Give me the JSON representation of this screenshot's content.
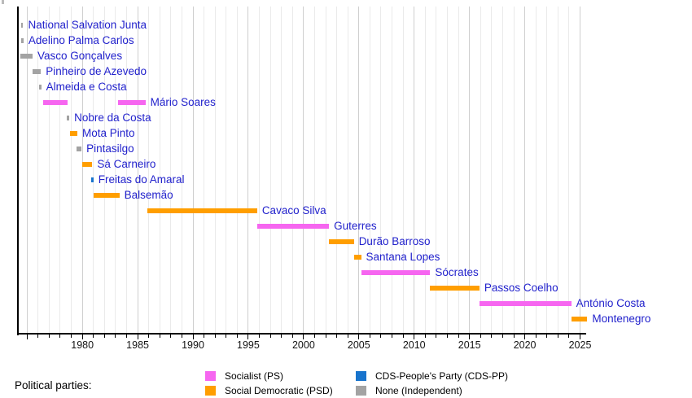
{
  "chart_data": {
    "type": "timeline",
    "x_axis": {
      "start_year": 1974.1,
      "end_year": 2025.75,
      "gridline_first_year": 1975,
      "gridline_last_year": 2025,
      "minor_tick_step": 1,
      "major_tick_step": 5,
      "labeled_ticks": [
        1980,
        1985,
        1990,
        1995,
        2000,
        2005,
        2010,
        2015,
        2020,
        2025
      ]
    },
    "parties": {
      "ps": {
        "label": "Socialist (PS)",
        "color": "#f666f0"
      },
      "psd": {
        "label": "Social Democratic (PSD)",
        "color": "#ff9e00"
      },
      "cds": {
        "label": "CDS-People's Party (CDS-PP)",
        "color": "#1874cd"
      },
      "none": {
        "label": "None (Independent)",
        "color": "#a3a3a3"
      }
    },
    "prime_ministers": [
      {
        "name": "National Salvation Junta",
        "party": "none",
        "terms": [
          [
            1974.45,
            1974.65
          ]
        ]
      },
      {
        "name": "Adelino Palma Carlos",
        "party": "none",
        "terms": [
          [
            1974.45,
            1974.68
          ]
        ]
      },
      {
        "name": "Vasco Gonçalves",
        "party": "none",
        "terms": [
          [
            1974.4,
            1975.5
          ]
        ]
      },
      {
        "name": "Pinheiro de Azevedo",
        "party": "none",
        "terms": [
          [
            1975.5,
            1976.25
          ]
        ]
      },
      {
        "name": "Almeida e Costa",
        "party": "none",
        "terms": [
          [
            1976.1,
            1976.28
          ]
        ]
      },
      {
        "name": "Mário Soares",
        "party": "ps",
        "terms": [
          [
            1976.45,
            1978.66
          ],
          [
            1983.22,
            1985.7
          ]
        ]
      },
      {
        "name": "Nobre da Costa",
        "party": "none",
        "terms": [
          [
            1978.6,
            1978.82
          ]
        ]
      },
      {
        "name": "Mota Pinto",
        "party": "psd",
        "terms": [
          [
            1978.86,
            1979.55
          ]
        ]
      },
      {
        "name": "Pintasilgo",
        "party": "none",
        "terms": [
          [
            1979.47,
            1979.92
          ]
        ]
      },
      {
        "name": "Sá Carneiro",
        "party": "psd",
        "terms": [
          [
            1980.0,
            1980.9
          ]
        ]
      },
      {
        "name": "Freitas do Amaral",
        "party": "cds",
        "terms": [
          [
            1980.8,
            1981.0
          ]
        ]
      },
      {
        "name": "Balsemão",
        "party": "psd",
        "terms": [
          [
            1981.05,
            1983.35
          ]
        ]
      },
      {
        "name": "Cavaco Silva",
        "party": "psd",
        "terms": [
          [
            1985.85,
            1995.8
          ]
        ]
      },
      {
        "name": "Guterres",
        "party": "ps",
        "terms": [
          [
            1995.8,
            2002.3
          ]
        ]
      },
      {
        "name": "Durão Barroso",
        "party": "psd",
        "terms": [
          [
            2002.3,
            2004.55
          ]
        ]
      },
      {
        "name": "Santana Lopes",
        "party": "psd",
        "terms": [
          [
            2004.55,
            2005.2
          ]
        ]
      },
      {
        "name": "Sócrates",
        "party": "ps",
        "terms": [
          [
            2005.2,
            2011.45
          ]
        ]
      },
      {
        "name": "Passos Coelho",
        "party": "psd",
        "terms": [
          [
            2011.45,
            2015.9
          ]
        ]
      },
      {
        "name": "António Costa",
        "party": "ps",
        "terms": [
          [
            2015.9,
            2024.2
          ]
        ]
      },
      {
        "name": "Montenegro",
        "party": "psd",
        "terms": [
          [
            2024.25,
            2025.65
          ]
        ]
      }
    ]
  },
  "legend": {
    "title": "Political parties:",
    "columns": [
      [
        "ps",
        "psd"
      ],
      [
        "cds",
        "none"
      ]
    ]
  }
}
